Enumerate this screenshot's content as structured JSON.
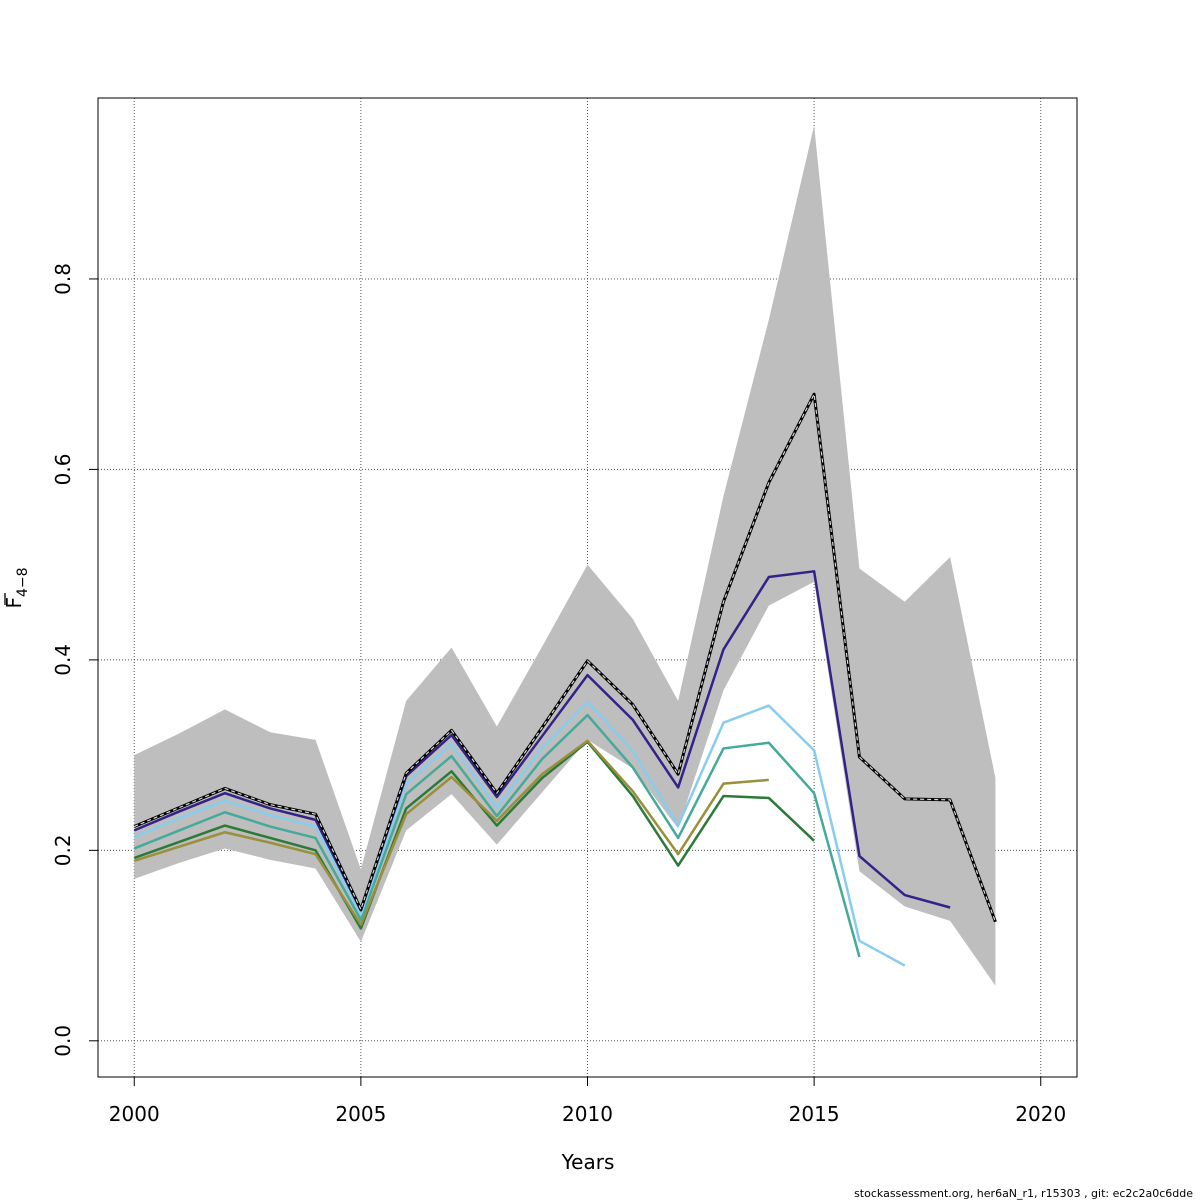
{
  "chart_data": {
    "type": "line",
    "xlabel": "Years",
    "ylabel": "F̄4−8",
    "ylabel_main": "F",
    "ylabel_sub": "4−8",
    "xlim": [
      1999.2,
      2020.8
    ],
    "ylim": [
      -0.038,
      0.99
    ],
    "x_ticks": [
      2000,
      2005,
      2010,
      2015,
      2020
    ],
    "x_tick_labels": [
      "2000",
      "2005",
      "2010",
      "2015",
      "2020"
    ],
    "y_ticks": [
      0.0,
      0.2,
      0.4,
      0.6,
      0.8
    ],
    "y_tick_labels": [
      "0.0",
      "0.2",
      "0.4",
      "0.6",
      "0.8"
    ],
    "grid": true,
    "band": {
      "color": "#bebebe",
      "x": [
        2000,
        2001,
        2002,
        2003,
        2004,
        2005,
        2006,
        2007,
        2008,
        2009,
        2010,
        2011,
        2012,
        2013,
        2014,
        2015,
        2016,
        2017,
        2018,
        2019
      ],
      "lower": [
        0.17,
        0.187,
        0.202,
        0.19,
        0.181,
        0.104,
        0.221,
        0.259,
        0.206,
        0.261,
        0.316,
        0.286,
        0.223,
        0.368,
        0.457,
        0.482,
        0.178,
        0.141,
        0.126,
        0.058
      ],
      "upper": [
        0.3,
        0.323,
        0.348,
        0.324,
        0.316,
        0.18,
        0.357,
        0.413,
        0.33,
        0.414,
        0.5,
        0.443,
        0.357,
        0.572,
        0.757,
        0.961,
        0.496,
        0.461,
        0.508,
        0.276
      ]
    },
    "series": [
      {
        "color": "#2b7a3a",
        "width": 2.5,
        "dashed": false,
        "x": [
          2000,
          2001,
          2002,
          2003,
          2004,
          2005,
          2006,
          2007,
          2008,
          2009,
          2010,
          2011,
          2012,
          2013,
          2014,
          2015
        ],
        "values": [
          0.192,
          0.209,
          0.226,
          0.213,
          0.2,
          0.118,
          0.244,
          0.283,
          0.226,
          0.276,
          0.314,
          0.257,
          0.184,
          0.257,
          0.255,
          0.21
        ]
      },
      {
        "color": "#9a8f3a",
        "width": 2.5,
        "dashed": false,
        "x": [
          2000,
          2001,
          2002,
          2003,
          2004,
          2005,
          2006,
          2007,
          2008,
          2009,
          2010,
          2011,
          2012,
          2013,
          2014
        ],
        "values": [
          0.189,
          0.204,
          0.219,
          0.208,
          0.196,
          0.122,
          0.238,
          0.277,
          0.231,
          0.28,
          0.315,
          0.262,
          0.196,
          0.27,
          0.274
        ]
      },
      {
        "color": "#44aa99",
        "width": 2.5,
        "dashed": false,
        "x": [
          2000,
          2001,
          2002,
          2003,
          2004,
          2005,
          2006,
          2007,
          2008,
          2009,
          2010,
          2011,
          2012,
          2013,
          2014,
          2015,
          2016
        ],
        "values": [
          0.202,
          0.221,
          0.24,
          0.225,
          0.213,
          0.127,
          0.259,
          0.299,
          0.236,
          0.296,
          0.342,
          0.287,
          0.213,
          0.307,
          0.313,
          0.26,
          0.088
        ]
      },
      {
        "color": "#88ccee",
        "width": 2.5,
        "dashed": false,
        "x": [
          2000,
          2001,
          2002,
          2003,
          2004,
          2005,
          2006,
          2007,
          2008,
          2009,
          2010,
          2011,
          2012,
          2013,
          2014,
          2015,
          2016,
          2017
        ],
        "values": [
          0.214,
          0.234,
          0.252,
          0.237,
          0.225,
          0.133,
          0.27,
          0.312,
          0.245,
          0.308,
          0.356,
          0.304,
          0.226,
          0.334,
          0.352,
          0.305,
          0.105,
          0.079
        ]
      },
      {
        "color": "#332288",
        "width": 2.5,
        "dashed": false,
        "x": [
          2000,
          2001,
          2002,
          2003,
          2004,
          2005,
          2006,
          2007,
          2008,
          2009,
          2010,
          2011,
          2012,
          2013,
          2014,
          2015,
          2016,
          2017,
          2018
        ],
        "values": [
          0.221,
          0.241,
          0.26,
          0.244,
          0.232,
          0.137,
          0.278,
          0.321,
          0.256,
          0.32,
          0.384,
          0.337,
          0.266,
          0.411,
          0.487,
          0.493,
          0.194,
          0.153,
          0.14
        ]
      },
      {
        "color": "#000000",
        "width": 3,
        "dashed": false,
        "x": [
          2000,
          2001,
          2002,
          2003,
          2004,
          2005,
          2006,
          2007,
          2008,
          2009,
          2010,
          2011,
          2012,
          2013,
          2014,
          2015,
          2016,
          2017,
          2018,
          2019
        ],
        "values": [
          0.225,
          0.245,
          0.265,
          0.248,
          0.238,
          0.138,
          0.281,
          0.326,
          0.26,
          0.329,
          0.399,
          0.353,
          0.28,
          0.461,
          0.586,
          0.679,
          0.298,
          0.254,
          0.253,
          0.125
        ]
      },
      {
        "color": "#d9d9d9",
        "width": 1.2,
        "dashed": true,
        "x": [
          2000,
          2001,
          2002,
          2003,
          2004,
          2005,
          2006,
          2007,
          2008,
          2009,
          2010,
          2011,
          2012,
          2013,
          2014,
          2015,
          2016,
          2017,
          2018,
          2019
        ],
        "values": [
          0.225,
          0.245,
          0.265,
          0.248,
          0.238,
          0.138,
          0.281,
          0.326,
          0.26,
          0.329,
          0.399,
          0.353,
          0.28,
          0.461,
          0.586,
          0.679,
          0.298,
          0.254,
          0.253,
          0.125
        ]
      }
    ]
  },
  "footer_text": "stockassessment.org, her6aN_r1, r15303 , git: ec2c2a0c6dde"
}
